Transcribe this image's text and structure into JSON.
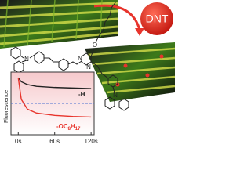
{
  "labels": {
    "analyte": "DNT"
  },
  "molecule": {
    "atoms": [
      "N",
      "O",
      "N",
      "N",
      "N"
    ]
  },
  "chart_data": {
    "type": "line",
    "y_label": "Fluorescence",
    "x": [
      0,
      5,
      15,
      30,
      60,
      90,
      120
    ],
    "xlim": [
      -12,
      125
    ],
    "xticks": [
      {
        "value": 0,
        "label": "0s"
      },
      {
        "value": 60,
        "label": "60s"
      },
      {
        "value": 120,
        "label": "120s"
      }
    ],
    "ylim": [
      0,
      1.1
    ],
    "reference_line": 0.55,
    "series": [
      {
        "name": "-H",
        "color": "#222222",
        "values": [
          1,
          0.93,
          0.88,
          0.85,
          0.83,
          0.82,
          0.81
        ]
      },
      {
        "name_parts": [
          "-OC",
          "8",
          "H",
          "17"
        ],
        "color": "#e8342c",
        "values": [
          1,
          0.62,
          0.45,
          0.38,
          0.34,
          0.32,
          0.31
        ]
      }
    ]
  }
}
